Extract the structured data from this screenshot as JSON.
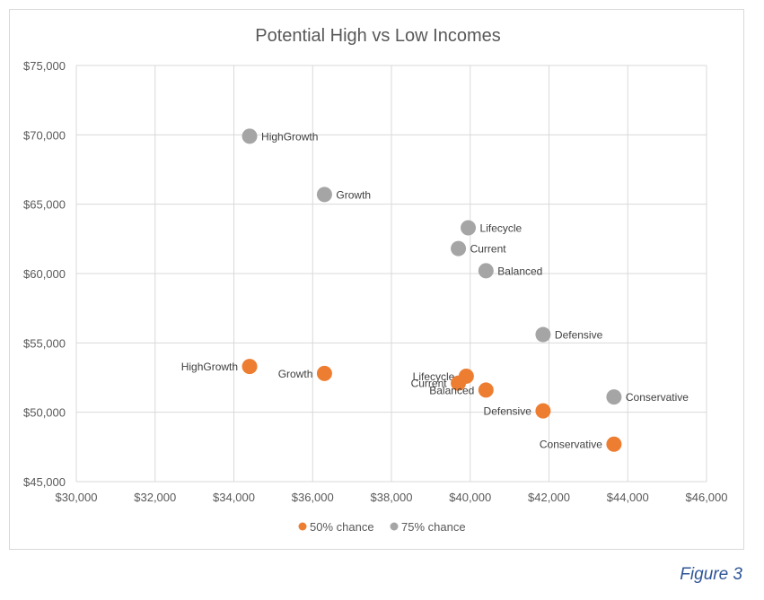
{
  "chart_data": {
    "type": "scatter",
    "title": "Potential High vs Low Incomes",
    "xlabel": "",
    "ylabel": "",
    "xlim": [
      30000,
      46000
    ],
    "ylim": [
      45000,
      75000
    ],
    "x_ticks": [
      30000,
      32000,
      34000,
      36000,
      38000,
      40000,
      42000,
      44000,
      46000
    ],
    "y_ticks": [
      45000,
      50000,
      55000,
      60000,
      65000,
      70000,
      75000
    ],
    "x_tick_labels": [
      "$30,000",
      "$32,000",
      "$34,000",
      "$36,000",
      "$38,000",
      "$40,000",
      "$42,000",
      "$44,000",
      "$46,000"
    ],
    "y_tick_labels": [
      "$45,000",
      "$50,000",
      "$55,000",
      "$60,000",
      "$65,000",
      "$70,000",
      "$75,000"
    ],
    "grid": true,
    "legend_position": "bottom",
    "series": [
      {
        "name": "50% chance",
        "color": "#ed7d31",
        "label_side": "left",
        "points": [
          {
            "label": "HighGrowth",
            "x": 34400,
            "y": 53300
          },
          {
            "label": "Growth",
            "x": 36300,
            "y": 52800
          },
          {
            "label": "Lifecycle",
            "x": 39900,
            "y": 52600
          },
          {
            "label": "Current",
            "x": 39700,
            "y": 52100
          },
          {
            "label": "Balanced",
            "x": 40400,
            "y": 51600
          },
          {
            "label": "Defensive",
            "x": 41850,
            "y": 50100
          },
          {
            "label": "Conservative",
            "x": 43650,
            "y": 47700
          }
        ]
      },
      {
        "name": "75% chance",
        "color": "#a5a5a5",
        "label_side": "right",
        "points": [
          {
            "label": "HighGrowth",
            "x": 34400,
            "y": 69900
          },
          {
            "label": "Growth",
            "x": 36300,
            "y": 65700
          },
          {
            "label": "Lifecycle",
            "x": 39950,
            "y": 63300
          },
          {
            "label": "Current",
            "x": 39700,
            "y": 61800
          },
          {
            "label": "Balanced",
            "x": 40400,
            "y": 60200
          },
          {
            "label": "Defensive",
            "x": 41850,
            "y": 55600
          },
          {
            "label": "Conservative",
            "x": 43650,
            "y": 51100
          }
        ]
      }
    ]
  },
  "caption": "Figure 3"
}
